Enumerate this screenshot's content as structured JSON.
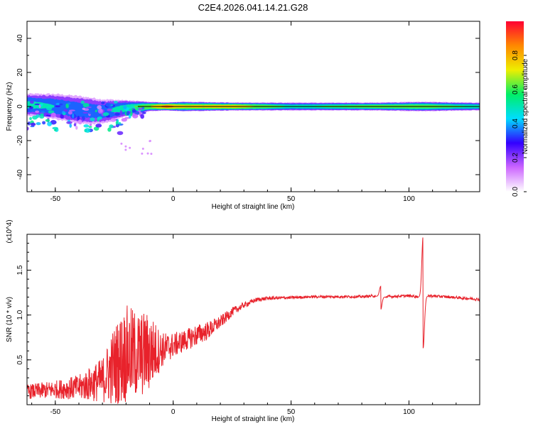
{
  "title": "C2E4.2026.041.14.21.G28",
  "chart_data": [
    {
      "type": "heatmap",
      "name": "spectrogram",
      "xlabel": "Height of straight line (km)",
      "ylabel": "Frequency (Hz)",
      "xlim": [
        -62,
        130
      ],
      "ylim": [
        -50,
        50
      ],
      "xticks": [
        -50,
        0,
        50,
        100
      ],
      "yticks": [
        40,
        20,
        0,
        -20,
        -40
      ],
      "colorbar": {
        "label": "Normalized spectral amplitude",
        "range": [
          0,
          1
        ],
        "ticks": [
          "0.0",
          "0.2",
          "0.4",
          "0.6",
          "0.8"
        ],
        "colors": [
          "#ffffff",
          "#cc66ff",
          "#3300ff",
          "#00ddff",
          "#00ee66",
          "#eeee00",
          "#ff8800",
          "#ff0033"
        ]
      },
      "band": [
        {
          "x": -60,
          "center": 1,
          "width": 7,
          "peak": 0.55
        },
        {
          "x": -50,
          "center": 0,
          "width": 8,
          "peak": 0.5
        },
        {
          "x": -40,
          "center": -2,
          "width": 9,
          "peak": 0.45
        },
        {
          "x": -30,
          "center": -3,
          "width": 8,
          "peak": 0.45
        },
        {
          "x": -20,
          "center": -1,
          "width": 5,
          "peak": 0.6
        },
        {
          "x": -10,
          "center": 0,
          "width": 3,
          "peak": 0.75
        },
        {
          "x": -3,
          "center": 0,
          "width": 2.5,
          "peak": 0.95
        },
        {
          "x": 5,
          "center": 0,
          "width": 3,
          "peak": 0.8
        },
        {
          "x": 25,
          "center": 0,
          "width": 2.5,
          "peak": 0.85
        },
        {
          "x": 50,
          "center": 0,
          "width": 2.5,
          "peak": 0.6
        },
        {
          "x": 88,
          "center": 0,
          "width": 2.5,
          "peak": 0.7
        },
        {
          "x": 105,
          "center": 0,
          "width": 3,
          "peak": 0.7
        },
        {
          "x": 130,
          "center": 0,
          "width": 2.5,
          "peak": 0.6
        }
      ]
    },
    {
      "type": "line",
      "name": "snr",
      "xlabel": "Height of straight line (km)",
      "ylabel": "SNR (10 * v/v)",
      "y_multiplier": "(x10^4)",
      "xlim": [
        -62,
        130
      ],
      "ylim": [
        0,
        1.9
      ],
      "xticks": [
        -50,
        0,
        50,
        100
      ],
      "yticks": [
        "0.5",
        "1.0",
        "1.5"
      ],
      "line_color": "#e8222b",
      "envelope_x": [
        -62,
        -50,
        -40,
        -30,
        -25,
        -20,
        -15,
        -10,
        -5,
        0,
        5,
        10,
        15,
        20,
        25,
        30,
        35,
        40,
        50,
        60,
        70,
        80,
        86,
        90,
        100,
        104,
        108,
        115,
        130
      ],
      "envelope_y": [
        0.12,
        0.14,
        0.15,
        0.2,
        0.3,
        0.4,
        0.4,
        0.45,
        0.55,
        0.62,
        0.68,
        0.74,
        0.8,
        0.9,
        1.02,
        1.1,
        1.16,
        1.18,
        1.19,
        1.2,
        1.2,
        1.2,
        1.21,
        1.2,
        1.21,
        1.2,
        1.21,
        1.2,
        1.17
      ],
      "noise_x": [
        -62,
        -50,
        -40,
        -30,
        -25,
        -20,
        -15,
        -10,
        -5,
        0,
        5,
        10,
        15,
        20,
        25,
        30,
        35,
        40,
        50,
        130
      ],
      "noise_amp": [
        0.08,
        0.1,
        0.14,
        0.25,
        0.45,
        0.55,
        0.5,
        0.45,
        0.2,
        0.14,
        0.12,
        0.12,
        0.1,
        0.07,
        0.05,
        0.03,
        0.025,
        0.02,
        0.015,
        0.015
      ],
      "features": [
        {
          "x": 88,
          "peak": 1.32,
          "trough": 1.06
        },
        {
          "x": 106,
          "peak": 1.88,
          "trough": 0.63
        }
      ]
    }
  ]
}
